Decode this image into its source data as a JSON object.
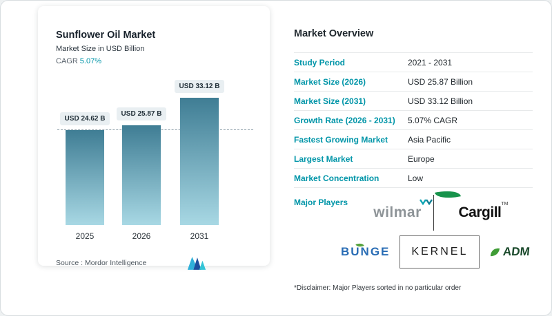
{
  "colors": {
    "accent": "#0095a8",
    "bar-top": "#3f7d94",
    "bar-bottom": "#a8d8e4"
  },
  "chart_data": {
    "type": "bar",
    "title": "Sunflower Oil Market",
    "subtitle": "Market Size in USD Billion",
    "cagr_label": "CAGR",
    "cagr_value": "5.07%",
    "categories": [
      "2025",
      "2026",
      "2031"
    ],
    "values": [
      24.62,
      25.87,
      33.12
    ],
    "bar_labels": [
      "USD 24.62 B",
      "USD 25.87 B",
      "USD 33.12 B"
    ],
    "ylabel": "USD Billion",
    "ylim": [
      0,
      38
    ],
    "grid": false,
    "legend": false,
    "reference_line_value": 24.62,
    "source": "Source :  Mordor Intelligence"
  },
  "overview": {
    "title": "Market Overview",
    "rows": [
      {
        "label": "Study Period",
        "value": "2021 - 2031"
      },
      {
        "label": "Market Size (2026)",
        "value": "USD 25.87 Billion"
      },
      {
        "label": "Market Size (2031)",
        "value": "USD 33.12 Billion"
      },
      {
        "label": "Growth Rate (2026 - 2031)",
        "value": "5.07% CAGR"
      },
      {
        "label": "Fastest Growing Market",
        "value": "Asia Pacific"
      },
      {
        "label": "Largest Market",
        "value": "Europe"
      },
      {
        "label": "Market Concentration",
        "value": "Low"
      }
    ],
    "major_players_label": "Major Players",
    "players": [
      "wilmar",
      "Cargill",
      "BUNGE",
      "KERNEL",
      "ADM"
    ],
    "trademark": "TM",
    "disclaimer": "*Disclaimer: Major Players sorted in no particular order"
  }
}
